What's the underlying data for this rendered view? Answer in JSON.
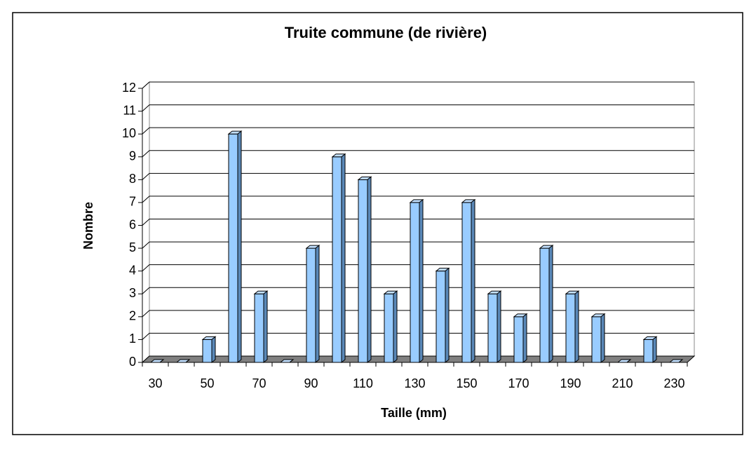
{
  "chart_data": {
    "type": "bar",
    "title": "Truite commune (de rivière)",
    "x_label": "Taille (mm)",
    "y_label": "Nombre",
    "categories": [
      "30",
      null,
      "50",
      null,
      "70",
      null,
      "90",
      null,
      "110",
      null,
      "130",
      null,
      "150",
      null,
      "170",
      null,
      "190",
      null,
      "210",
      null,
      "230"
    ],
    "values": [
      0,
      0,
      1,
      10,
      3,
      0,
      5,
      9,
      8,
      3,
      7,
      4,
      7,
      3,
      2,
      5,
      3,
      2,
      0,
      1,
      0
    ],
    "color": "#99ccff",
    "ylim": [
      0,
      12
    ],
    "yticks": [
      0,
      1,
      2,
      3,
      4,
      5,
      6,
      7,
      8,
      9,
      10,
      11,
      12
    ],
    "grid": true
  }
}
